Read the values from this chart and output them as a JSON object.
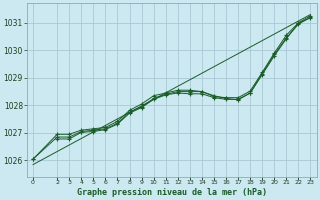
{
  "title": "Graphe pression niveau de la mer (hPa)",
  "background_color": "#cce8f0",
  "grid_color": "#aac8d4",
  "line_color": "#1a5c2a",
  "marker_color": "#1a5c2a",
  "xlim": [
    -0.5,
    23.5
  ],
  "ylim": [
    1025.4,
    1031.7
  ],
  "yticks": [
    1026,
    1027,
    1028,
    1029,
    1030,
    1031
  ],
  "xtick_labels": [
    "0",
    "2",
    "3",
    "4",
    "5",
    "6",
    "7",
    "8",
    "9",
    "10",
    "11",
    "12",
    "13",
    "14",
    "15",
    "16",
    "17",
    "18",
    "19",
    "20",
    "21",
    "22",
    "23"
  ],
  "xtick_pos": [
    0,
    2,
    3,
    4,
    5,
    6,
    7,
    8,
    9,
    10,
    11,
    12,
    13,
    14,
    15,
    16,
    17,
    18,
    19,
    20,
    21,
    22,
    23
  ],
  "series1": {
    "x": [
      0,
      2,
      3,
      4,
      5,
      6,
      7,
      8,
      9,
      10,
      11,
      12,
      13,
      14,
      15,
      16,
      17,
      18,
      19,
      20,
      21,
      22,
      23
    ],
    "y": [
      1026.05,
      1026.85,
      1026.85,
      1027.05,
      1027.1,
      1027.15,
      1027.35,
      1027.75,
      1027.95,
      1028.25,
      1028.4,
      1028.5,
      1028.5,
      1028.5,
      1028.35,
      1028.25,
      1028.2,
      1028.45,
      1029.15,
      1029.85,
      1030.45,
      1030.95,
      1031.2
    ]
  },
  "series2": {
    "x": [
      0,
      2,
      3,
      4,
      5,
      6,
      7,
      8,
      9,
      10,
      11,
      12,
      13,
      14,
      15,
      16,
      17,
      18,
      19,
      20,
      21,
      22,
      23
    ],
    "y": [
      1026.05,
      1026.95,
      1026.95,
      1027.1,
      1027.15,
      1027.2,
      1027.42,
      1027.82,
      1028.05,
      1028.35,
      1028.45,
      1028.55,
      1028.55,
      1028.5,
      1028.32,
      1028.28,
      1028.28,
      1028.52,
      1029.2,
      1029.9,
      1030.55,
      1031.0,
      1031.25
    ]
  },
  "series3": {
    "x": [
      2,
      3,
      4,
      5,
      6,
      7,
      8,
      9,
      10,
      11,
      12,
      13,
      14,
      15,
      16,
      17,
      18,
      19,
      20,
      21,
      22,
      23
    ],
    "y": [
      1026.78,
      1026.78,
      1027.02,
      1027.05,
      1027.12,
      1027.32,
      1027.72,
      1027.92,
      1028.22,
      1028.38,
      1028.45,
      1028.42,
      1028.42,
      1028.28,
      1028.22,
      1028.22,
      1028.45,
      1029.12,
      1029.8,
      1030.42,
      1030.98,
      1031.18
    ]
  },
  "trend_line": {
    "x": [
      0,
      23
    ],
    "y": [
      1025.85,
      1031.3
    ]
  }
}
